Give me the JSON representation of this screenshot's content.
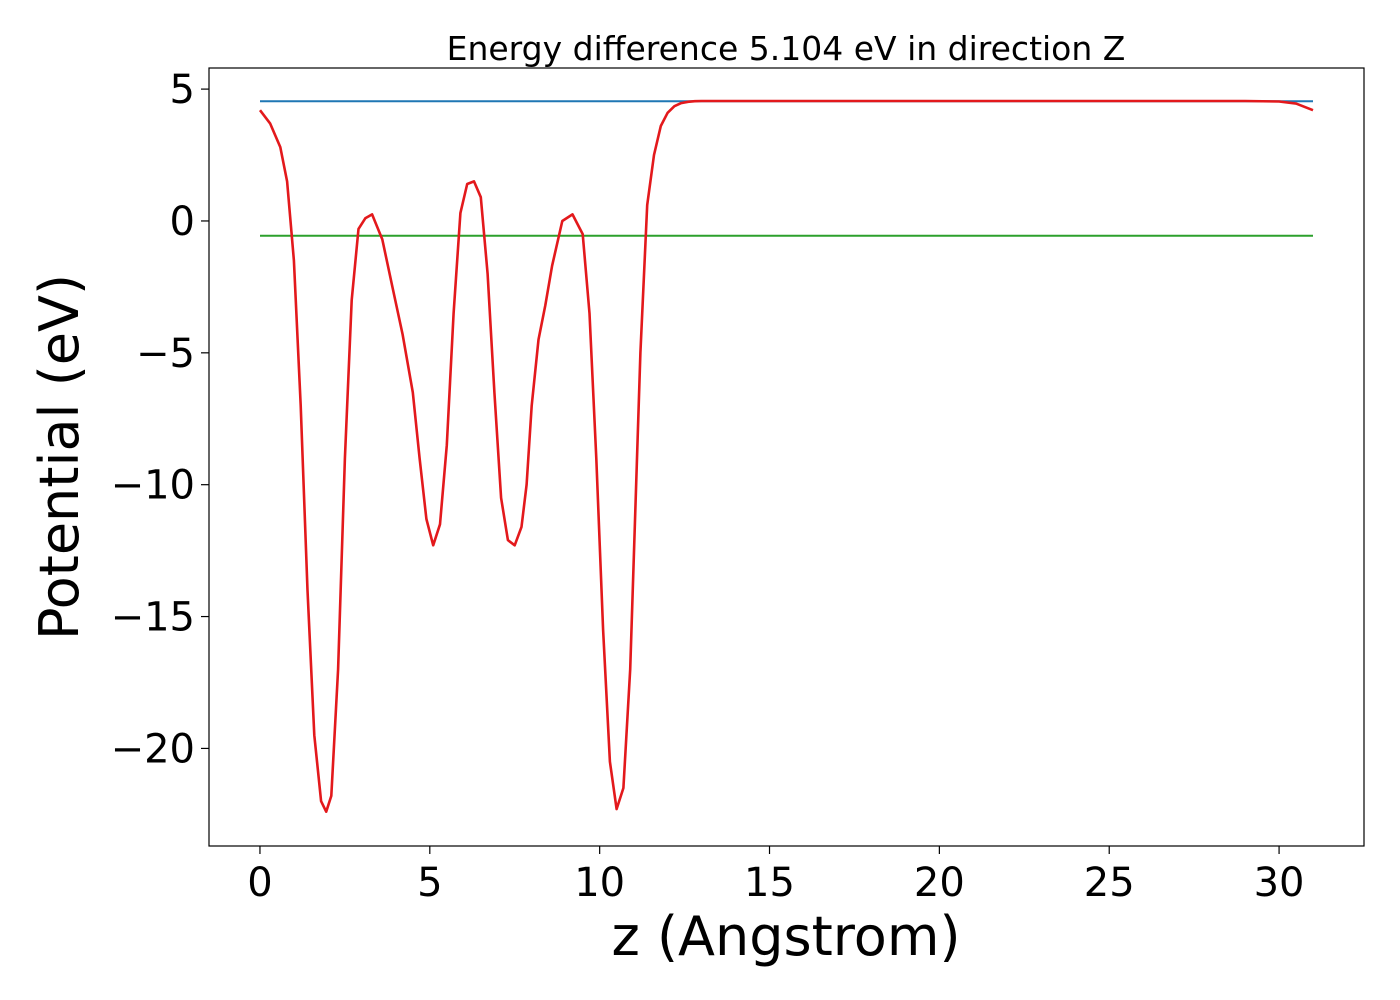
{
  "chart_data": {
    "type": "line",
    "title": "Energy difference 5.104 eV in direction Z",
    "xlabel": "z (Angstrom)",
    "ylabel": "Potential (eV)",
    "xlim": [
      -1.5,
      32.5
    ],
    "ylim": [
      -23.7,
      5.8
    ],
    "xticks": [
      0,
      5,
      10,
      15,
      20,
      25,
      30
    ],
    "yticks": [
      5,
      0,
      -5,
      -10,
      -15,
      -20
    ],
    "xtick_labels": [
      "0",
      "5",
      "10",
      "15",
      "20",
      "25",
      "30"
    ],
    "ytick_labels": [
      "5",
      "0",
      "−5",
      "−10",
      "−15",
      "−20"
    ],
    "grid": false,
    "series": [
      {
        "kind": "hline",
        "color": "#1f77b4",
        "x": [
          0,
          31
        ],
        "y": [
          4.54,
          4.54
        ]
      },
      {
        "kind": "hline",
        "color": "#2ca02c",
        "x": [
          0,
          31
        ],
        "y": [
          -0.56,
          -0.56
        ]
      },
      {
        "kind": "curve",
        "color": "#e3191c",
        "x": [
          0,
          0.3,
          0.6,
          0.8,
          1.0,
          1.2,
          1.4,
          1.6,
          1.8,
          1.95,
          2.1,
          2.3,
          2.5,
          2.7,
          2.9,
          3.1,
          3.3,
          3.6,
          3.9,
          4.2,
          4.5,
          4.7,
          4.9,
          5.1,
          5.3,
          5.5,
          5.7,
          5.9,
          6.1,
          6.3,
          6.5,
          6.7,
          6.9,
          7.1,
          7.3,
          7.5,
          7.7,
          7.85,
          8.0,
          8.2,
          8.4,
          8.6,
          8.9,
          9.2,
          9.5,
          9.7,
          9.9,
          10.1,
          10.3,
          10.5,
          10.7,
          10.9,
          11.05,
          11.2,
          11.4,
          11.6,
          11.8,
          12.0,
          12.2,
          12.4,
          12.6,
          12.8,
          13.0,
          13.3,
          13.6,
          14.0,
          14.5,
          15,
          20,
          25,
          29,
          30,
          30.5,
          31
        ],
        "y": [
          4.2,
          3.7,
          2.8,
          1.5,
          -1.5,
          -7.0,
          -14.0,
          -19.5,
          -22.0,
          -22.4,
          -21.8,
          -17.0,
          -9.0,
          -3.0,
          -0.3,
          0.1,
          0.25,
          -0.7,
          -2.5,
          -4.3,
          -6.5,
          -9.0,
          -11.3,
          -12.3,
          -11.5,
          -8.5,
          -3.5,
          0.3,
          1.4,
          1.5,
          0.9,
          -2.0,
          -6.5,
          -10.5,
          -12.1,
          -12.3,
          -11.6,
          -10.0,
          -7.0,
          -4.5,
          -3.2,
          -1.7,
          0.0,
          0.25,
          -0.5,
          -3.5,
          -9.0,
          -15.5,
          -20.5,
          -22.3,
          -21.5,
          -17.0,
          -11.0,
          -5.0,
          0.6,
          2.5,
          3.6,
          4.1,
          4.35,
          4.47,
          4.52,
          4.54,
          4.55,
          4.55,
          4.55,
          4.55,
          4.55,
          4.55,
          4.55,
          4.55,
          4.55,
          4.53,
          4.45,
          4.2
        ]
      }
    ]
  }
}
